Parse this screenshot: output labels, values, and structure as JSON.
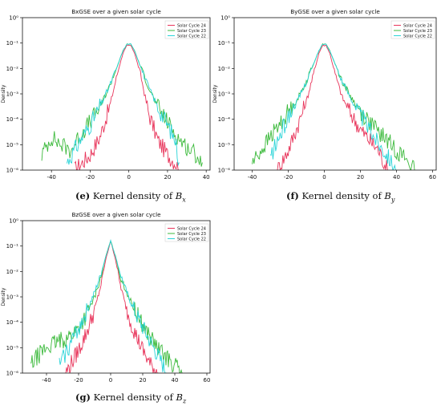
{
  "colors": {
    "c24": "#e8345a",
    "c23": "#3cba3c",
    "c22": "#2ad4d8"
  },
  "chart_data": [
    {
      "type": "line",
      "title": "BxGSE over a given solar cycle",
      "ylabel": "Density",
      "yscale": "log",
      "ylim": [
        1e-06,
        1
      ],
      "xlim": [
        -55,
        42
      ],
      "xticks": [
        "-40",
        "-20",
        "0",
        "20",
        "40"
      ],
      "yticks": [
        "10⁰",
        "10⁻¹",
        "10⁻²",
        "10⁻³",
        "10⁻⁴",
        "10⁻⁵",
        "10⁻⁶"
      ],
      "legend": "top-right",
      "series": [
        {
          "name": "Solar Cycle 24",
          "x": [
            -28,
            -20,
            -15,
            -10,
            -6,
            -3,
            -1,
            1,
            3,
            6,
            10,
            15,
            20,
            24,
            26
          ],
          "y": [
            1e-06,
            4e-06,
            2e-05,
            0.0003,
            0.006,
            0.04,
            0.08,
            0.08,
            0.04,
            0.006,
            0.0002,
            1.5e-05,
            4e-06,
            2e-06,
            1e-06
          ]
        },
        {
          "name": "Solar Cycle 23",
          "x": [
            -45,
            -40,
            -35,
            -30,
            -25,
            -20,
            -15,
            -10,
            -6,
            -3,
            -1,
            1,
            3,
            6,
            10,
            15,
            20,
            25,
            30,
            35,
            38
          ],
          "y": [
            4e-06,
            2e-05,
            1e-05,
            6e-06,
            2.5e-05,
            8e-05,
            0.0003,
            0.002,
            0.012,
            0.05,
            0.09,
            0.09,
            0.05,
            0.012,
            0.002,
            0.0003,
            8e-05,
            2e-05,
            8e-06,
            4e-06,
            2e-06
          ]
        },
        {
          "name": "Solar Cycle 22",
          "x": [
            -32,
            -25,
            -20,
            -15,
            -10,
            -6,
            -3,
            -1,
            1,
            3,
            6,
            10,
            15,
            20,
            24,
            26
          ],
          "y": [
            2e-06,
            1.5e-05,
            6e-05,
            0.0003,
            0.002,
            0.012,
            0.05,
            0.09,
            0.09,
            0.05,
            0.012,
            0.002,
            0.0003,
            6e-05,
            1.5e-05,
            2e-06
          ]
        }
      ]
    },
    {
      "type": "line",
      "title": "ByGSE over a given solar cycle",
      "ylabel": "Density",
      "yscale": "log",
      "ylim": [
        1e-06,
        1
      ],
      "xlim": [
        -50,
        62
      ],
      "xticks": [
        "-40",
        "-20",
        "0",
        "20",
        "40",
        "60"
      ],
      "yticks": [
        "10⁰",
        "10⁻¹",
        "10⁻²",
        "10⁻³",
        "10⁻⁴",
        "10⁻⁵",
        "10⁻⁶"
      ],
      "legend": "top-right",
      "series": [
        {
          "name": "Solar Cycle 24",
          "x": [
            -26,
            -20,
            -15,
            -10,
            -6,
            -3,
            -1,
            1,
            3,
            6,
            10,
            15,
            20,
            25,
            30,
            35
          ],
          "y": [
            1e-06,
            6e-06,
            5e-05,
            0.0005,
            0.006,
            0.04,
            0.08,
            0.08,
            0.04,
            0.006,
            0.0007,
            0.00015,
            4e-05,
            1.5e-05,
            6e-06,
            1e-06
          ]
        },
        {
          "name": "Solar Cycle 23",
          "x": [
            -40,
            -35,
            -30,
            -25,
            -20,
            -15,
            -10,
            -6,
            -3,
            -1,
            1,
            3,
            6,
            10,
            15,
            20,
            25,
            30,
            35,
            40,
            45,
            50
          ],
          "y": [
            2e-06,
            6e-06,
            2e-05,
            6e-05,
            0.0002,
            0.0006,
            0.003,
            0.015,
            0.05,
            0.09,
            0.09,
            0.05,
            0.015,
            0.003,
            0.0007,
            0.0002,
            8e-05,
            3e-05,
            1.5e-05,
            6e-06,
            3e-06,
            1e-06
          ]
        },
        {
          "name": "Solar Cycle 22",
          "x": [
            -30,
            -25,
            -20,
            -15,
            -10,
            -6,
            -3,
            -1,
            1,
            3,
            6,
            10,
            15,
            20,
            25,
            30,
            35,
            40
          ],
          "y": [
            3e-06,
            2e-05,
            0.00012,
            0.0005,
            0.003,
            0.015,
            0.05,
            0.09,
            0.09,
            0.05,
            0.015,
            0.003,
            0.0006,
            0.00015,
            4e-05,
            1.2e-05,
            4e-06,
            1e-06
          ]
        }
      ]
    },
    {
      "type": "line",
      "title": "BzGSE over a given solar cycle",
      "ylabel": "Density",
      "yscale": "log",
      "ylim": [
        1e-06,
        1
      ],
      "xlim": [
        -55,
        62
      ],
      "xticks": [
        "-40",
        "-20",
        "0",
        "20",
        "40",
        "60"
      ],
      "yticks": [
        "10⁰",
        "10⁻¹",
        "10⁻²",
        "10⁻³",
        "10⁻⁴",
        "10⁻⁵",
        "10⁻⁶"
      ],
      "legend": "top-right",
      "series": [
        {
          "name": "Solar Cycle 24",
          "x": [
            -28,
            -20,
            -15,
            -10,
            -6,
            -3,
            0,
            3,
            6,
            10,
            15,
            20,
            25,
            30
          ],
          "y": [
            1e-06,
            8e-06,
            4e-05,
            0.0003,
            0.003,
            0.03,
            0.16,
            0.03,
            0.003,
            0.0003,
            4e-05,
            8e-06,
            2e-06,
            1e-06
          ]
        },
        {
          "name": "Solar Cycle 23",
          "x": [
            -50,
            -45,
            -40,
            -35,
            -30,
            -25,
            -20,
            -15,
            -10,
            -6,
            -3,
            0,
            3,
            6,
            10,
            15,
            20,
            25,
            30,
            35,
            40,
            45
          ],
          "y": [
            2e-06,
            5e-06,
            1e-05,
            1.5e-05,
            2e-05,
            3e-05,
            6e-05,
            0.0002,
            0.001,
            0.006,
            0.04,
            0.16,
            0.04,
            0.006,
            0.0015,
            0.0003,
            8e-05,
            2.5e-05,
            8e-06,
            4e-06,
            2e-06,
            1e-06
          ]
        },
        {
          "name": "Solar Cycle 22",
          "x": [
            -32,
            -25,
            -20,
            -15,
            -10,
            -6,
            -3,
            0,
            3,
            6,
            10,
            15,
            20,
            25,
            30,
            35
          ],
          "y": [
            2e-06,
            1.5e-05,
            6e-05,
            0.00025,
            0.0015,
            0.008,
            0.04,
            0.16,
            0.04,
            0.008,
            0.0015,
            0.00025,
            6e-05,
            1.5e-05,
            4e-06,
            1e-06
          ]
        }
      ]
    }
  ],
  "captions": {
    "bx": {
      "label": "(e)",
      "text": "Kernel density of",
      "var": "B",
      "sub": "x"
    },
    "by": {
      "label": "(f)",
      "text": "Kernel density of",
      "var": "B",
      "sub": "y"
    },
    "bz": {
      "label": "(g)",
      "text": "Kernel density of",
      "var": "B",
      "sub": "z"
    }
  }
}
